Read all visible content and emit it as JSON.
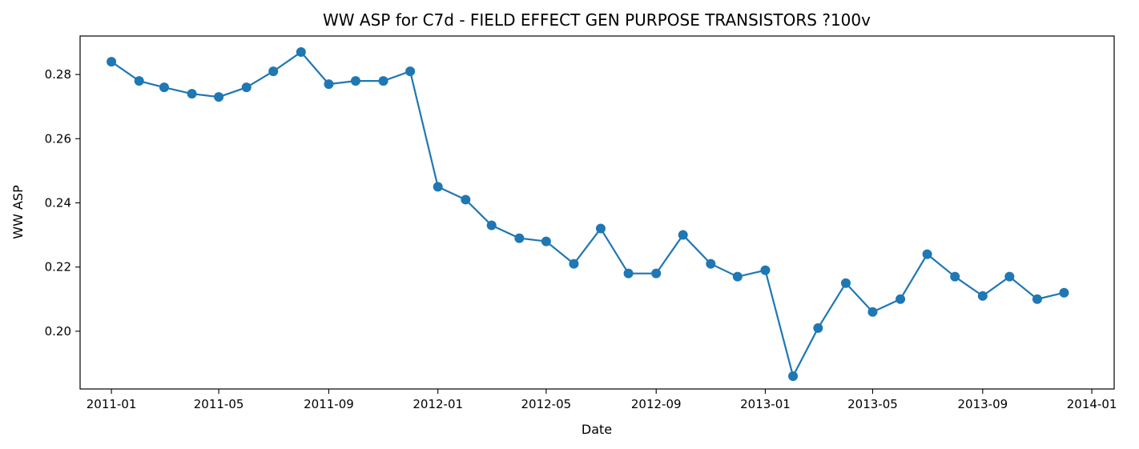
{
  "chart_data": {
    "type": "line",
    "title": "WW ASP for C7d - FIELD EFFECT GEN PURPOSE TRANSISTORS ?100v",
    "xlabel": "Date",
    "ylabel": "WW ASP",
    "xlim": [
      "2010-11-27",
      "2014-01-26"
    ],
    "ylim": [
      0.182,
      0.292
    ],
    "x_ticks": [
      "2011-01",
      "2011-05",
      "2011-09",
      "2012-01",
      "2012-05",
      "2012-09",
      "2013-01",
      "2013-05",
      "2013-09",
      "2014-01"
    ],
    "y_ticks": [
      "0.20",
      "0.22",
      "0.24",
      "0.26",
      "0.28"
    ],
    "grid": false,
    "legend": "none",
    "series": [
      {
        "color": "#1f77b4",
        "marker": "circle",
        "x": [
          "2011-01",
          "2011-02",
          "2011-03",
          "2011-04",
          "2011-05",
          "2011-06",
          "2011-07",
          "2011-08",
          "2011-09",
          "2011-10",
          "2011-11",
          "2011-12",
          "2012-01",
          "2012-02",
          "2012-03",
          "2012-04",
          "2012-05",
          "2012-06",
          "2012-07",
          "2012-08",
          "2012-09",
          "2012-10",
          "2012-11",
          "2012-12",
          "2013-01",
          "2013-02",
          "2013-03",
          "2013-04",
          "2013-05",
          "2013-06",
          "2013-07",
          "2013-08",
          "2013-09",
          "2013-10",
          "2013-11",
          "2013-12"
        ],
        "values": [
          0.284,
          0.278,
          0.276,
          0.274,
          0.273,
          0.276,
          0.281,
          0.287,
          0.277,
          0.278,
          0.278,
          0.281,
          0.245,
          0.241,
          0.233,
          0.229,
          0.228,
          0.221,
          0.232,
          0.218,
          0.218,
          0.23,
          0.221,
          0.217,
          0.219,
          0.186,
          0.201,
          0.215,
          0.206,
          0.21,
          0.224,
          0.217,
          0.211,
          0.217,
          0.21,
          0.212
        ]
      }
    ]
  }
}
